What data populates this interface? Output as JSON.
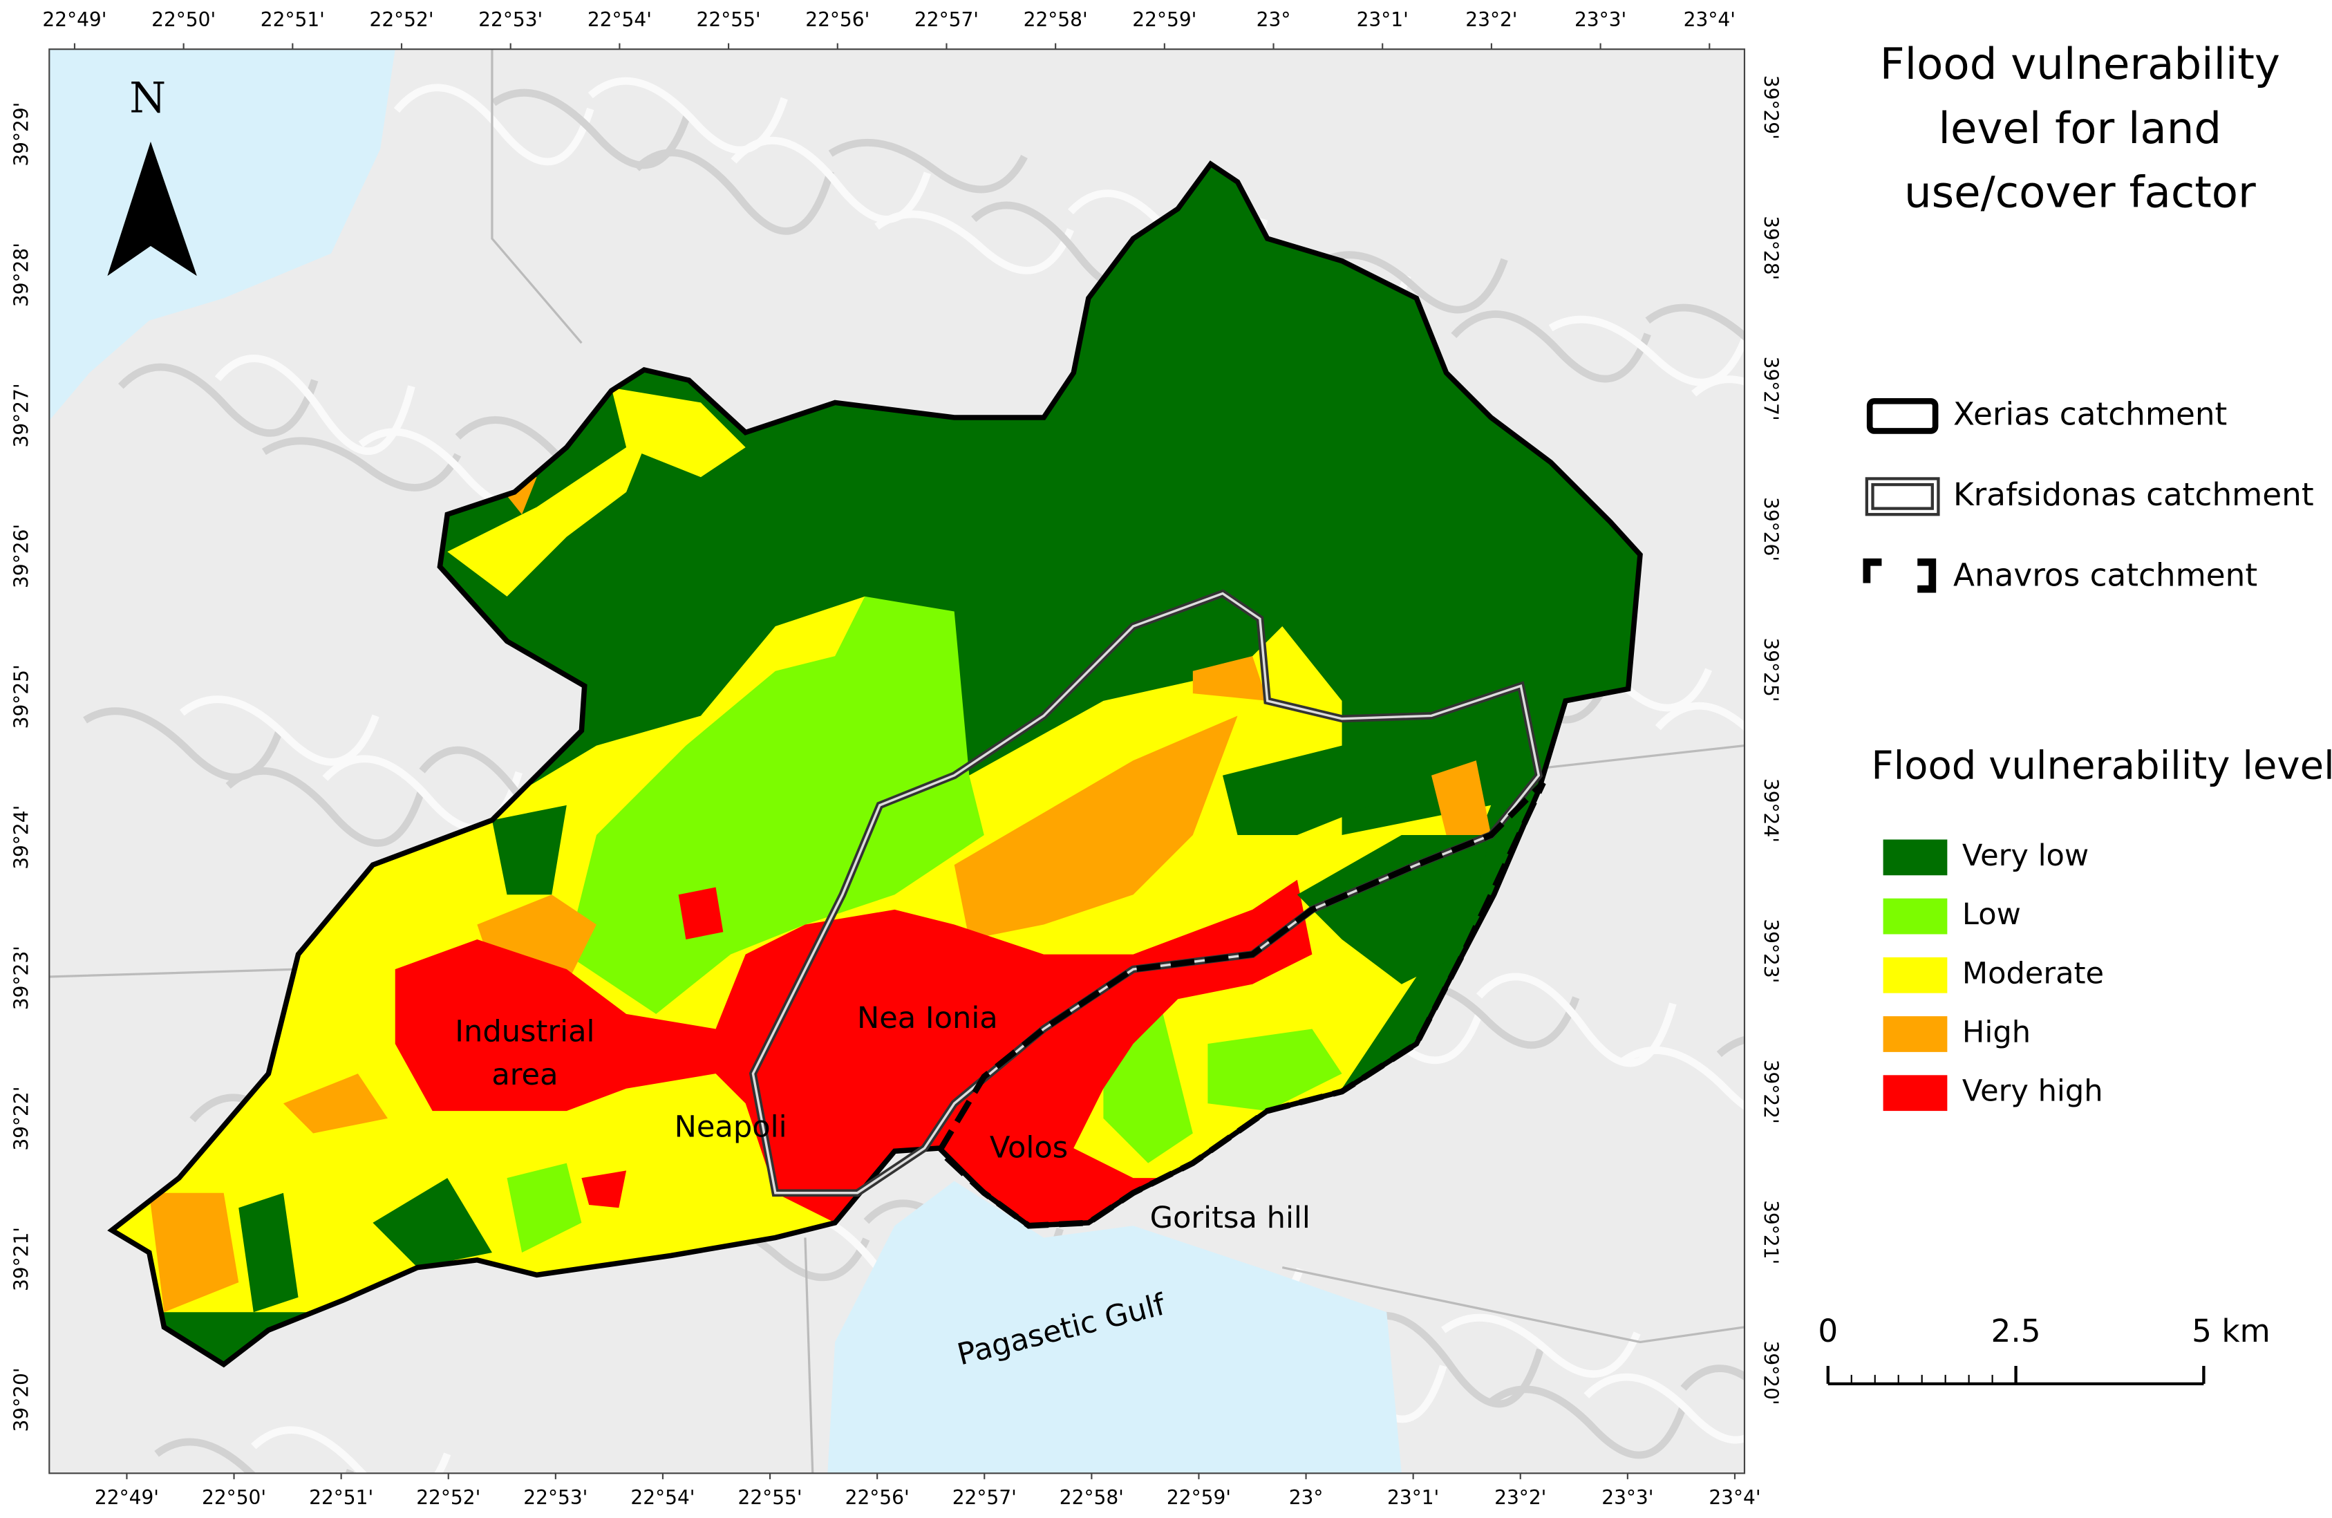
{
  "title_lines": [
    "Flood vulnerability",
    "level for land",
    "use/cover factor"
  ],
  "catchments": [
    {
      "label": "Xerias catchment"
    },
    {
      "label": "Krafsidonas catchment"
    },
    {
      "label": "Anavros catchment"
    }
  ],
  "vulnerability_legend": {
    "title": "Flood vulnerability level",
    "levels": [
      {
        "label": "Very low",
        "color": "#006f00"
      },
      {
        "label": "Low",
        "color": "#7cfc00"
      },
      {
        "label": "Moderate",
        "color": "#ffff00"
      },
      {
        "label": "High",
        "color": "#ffa500"
      },
      {
        "label": "Very high",
        "color": "#ff0000"
      }
    ]
  },
  "scale_bar": {
    "labels": [
      "0",
      "2.5",
      "5 km"
    ]
  },
  "north_arrow": "N",
  "place_labels": {
    "industrial": [
      "Industrial",
      "area"
    ],
    "nea_ionia": "Nea Ionia",
    "neapoli": "Neapoli",
    "volos": "Volos",
    "goritsa": "Goritsa hill",
    "gulf": "Pagasetic Gulf"
  },
  "graticule": {
    "longitudes": [
      "22°49'",
      "22°50'",
      "22°51'",
      "22°52'",
      "22°53'",
      "22°54'",
      "22°55'",
      "22°56'",
      "22°57'",
      "22°58'",
      "22°59'",
      "23°",
      "23°1'",
      "23°2'",
      "23°3'",
      "23°4'"
    ],
    "latitudes": [
      "39°29'",
      "39°28'",
      "39°27'",
      "39°26'",
      "39°25'",
      "39°24'",
      "39°23'",
      "39°22'",
      "39°21'",
      "39°20'"
    ]
  }
}
